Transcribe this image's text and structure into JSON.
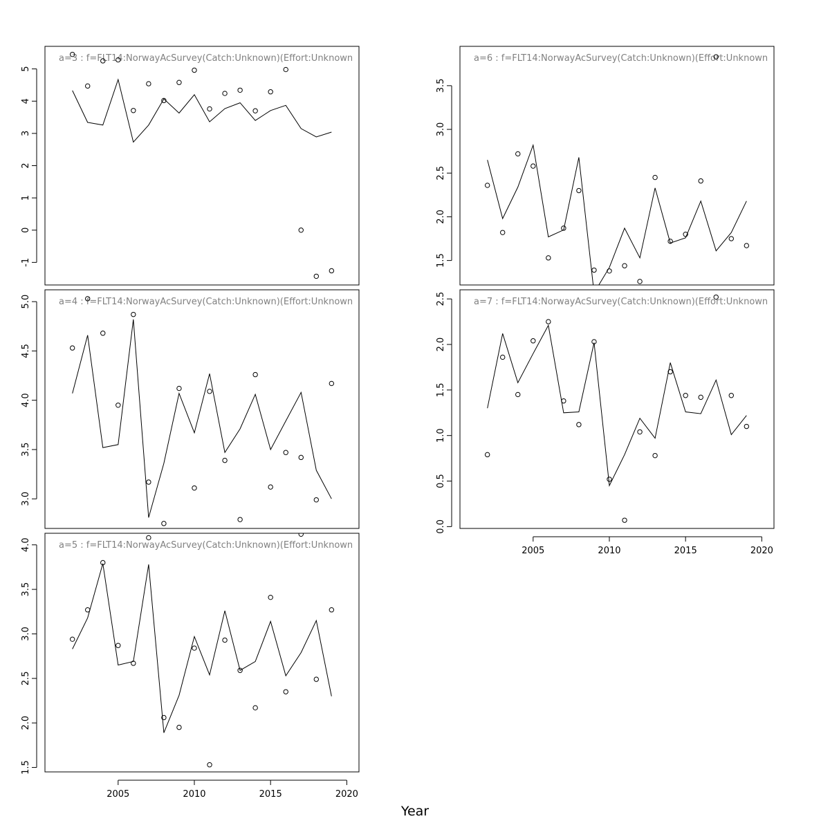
{
  "page": {
    "xlabel": "Year"
  },
  "chart_data": [
    {
      "type": "line",
      "title": "a=3  :  f=FLT14:NorwayAcSurvey(Catch:Unknown)(Effort:Unknown",
      "xlabel": "Year",
      "ylabel": "",
      "xlim": [
        2000.2,
        2020.8
      ],
      "ylim": [
        -1.7,
        5.7
      ],
      "yticks": [
        "-1",
        "0",
        "1",
        "2",
        "3",
        "4",
        "5"
      ],
      "xticks": [],
      "series": [
        {
          "mark": "line",
          "x": [
            2002,
            2003,
            2004,
            2005,
            2006,
            2007,
            2008,
            2009,
            2010,
            2011,
            2012,
            2013,
            2014,
            2015,
            2016,
            2017,
            2018,
            2019
          ],
          "values": [
            4.33,
            3.34,
            3.26,
            4.67,
            2.73,
            3.26,
            4.07,
            3.63,
            4.2,
            3.36,
            3.77,
            3.95,
            3.4,
            3.71,
            3.87,
            3.15,
            2.89,
            3.04
          ]
        },
        {
          "mark": "points",
          "x": [
            2002,
            2003,
            2004,
            2005,
            2006,
            2007,
            2008,
            2009,
            2010,
            2011,
            2012,
            2013,
            2014,
            2015,
            2016,
            2017,
            2018,
            2019
          ],
          "values": [
            5.45,
            4.47,
            5.25,
            5.28,
            3.71,
            4.54,
            4.02,
            4.58,
            4.96,
            3.76,
            4.24,
            4.34,
            3.7,
            4.29,
            4.98,
            0.0,
            -1.43,
            -1.26
          ]
        }
      ]
    },
    {
      "type": "line",
      "title": "a=4  :  f=FLT14:NorwayAcSurvey(Catch:Unknown)(Effort:Unknown",
      "xlabel": "Year",
      "ylabel": "",
      "xlim": [
        2000.2,
        2020.8
      ],
      "ylim": [
        2.7,
        5.12
      ],
      "yticks": [
        "3.0",
        "3.5",
        "4.0",
        "4.5",
        "5.0"
      ],
      "xticks": [],
      "series": [
        {
          "mark": "line",
          "x": [
            2002,
            2003,
            2004,
            2005,
            2006,
            2007,
            2008,
            2009,
            2010,
            2011,
            2012,
            2013,
            2014,
            2015,
            2016,
            2017,
            2018,
            2019
          ],
          "values": [
            4.07,
            4.66,
            3.52,
            3.55,
            4.82,
            2.81,
            3.36,
            4.07,
            3.67,
            4.27,
            3.47,
            3.71,
            4.06,
            3.5,
            3.79,
            4.08,
            3.29,
            3.0
          ]
        },
        {
          "mark": "points",
          "x": [
            2002,
            2003,
            2004,
            2005,
            2006,
            2007,
            2008,
            2009,
            2010,
            2011,
            2012,
            2013,
            2014,
            2015,
            2016,
            2017,
            2018,
            2019
          ],
          "values": [
            4.53,
            5.03,
            4.68,
            3.95,
            4.87,
            3.17,
            2.75,
            4.12,
            3.11,
            4.09,
            3.39,
            2.79,
            4.26,
            3.12,
            3.47,
            3.42,
            2.99,
            4.17
          ]
        }
      ]
    },
    {
      "type": "line",
      "title": "a=5  :  f=FLT14:NorwayAcSurvey(Catch:Unknown)(Effort:Unknown",
      "xlabel": "Year",
      "ylabel": "",
      "xlim": [
        2000.2,
        2020.8
      ],
      "ylim": [
        1.45,
        4.13
      ],
      "yticks": [
        "1.5",
        "2.0",
        "2.5",
        "3.0",
        "3.5",
        "4.0"
      ],
      "xticks": [
        "2005",
        "2010",
        "2015",
        "2020"
      ],
      "series": [
        {
          "mark": "line",
          "x": [
            2002,
            2003,
            2004,
            2005,
            2006,
            2007,
            2008,
            2009,
            2010,
            2011,
            2012,
            2013,
            2014,
            2015,
            2016,
            2017,
            2018,
            2019
          ],
          "values": [
            2.83,
            3.18,
            3.79,
            2.65,
            2.69,
            3.78,
            1.89,
            2.31,
            2.97,
            2.54,
            3.26,
            2.59,
            2.69,
            3.14,
            2.53,
            2.79,
            3.15,
            2.3
          ]
        },
        {
          "mark": "points",
          "x": [
            2002,
            2003,
            2004,
            2005,
            2006,
            2007,
            2008,
            2009,
            2010,
            2011,
            2012,
            2013,
            2014,
            2015,
            2016,
            2017,
            2018,
            2019
          ],
          "values": [
            2.94,
            3.27,
            3.8,
            2.87,
            2.67,
            4.08,
            2.06,
            1.95,
            2.84,
            1.53,
            2.93,
            2.59,
            2.17,
            3.41,
            2.35,
            4.12,
            2.49,
            3.27
          ]
        }
      ]
    },
    {
      "type": "line",
      "title": "a=6  :  f=FLT14:NorwayAcSurvey(Catch:Unknown)(Effort:Unknown",
      "xlabel": "Year",
      "ylabel": "",
      "xlim": [
        2000.2,
        2020.8
      ],
      "ylim": [
        1.22,
        3.95
      ],
      "yticks": [
        "1.5",
        "2.0",
        "2.5",
        "3.0",
        "3.5"
      ],
      "xticks": [],
      "series": [
        {
          "mark": "line",
          "x": [
            2002,
            2003,
            2004,
            2005,
            2006,
            2007,
            2008,
            2009,
            2010,
            2011,
            2012,
            2013,
            2014,
            2015,
            2016,
            2017,
            2018,
            2019
          ],
          "values": [
            2.65,
            1.98,
            2.34,
            2.82,
            1.77,
            1.85,
            2.68,
            1.13,
            1.42,
            1.87,
            1.53,
            2.33,
            1.7,
            1.76,
            2.18,
            1.61,
            1.82,
            2.18
          ]
        },
        {
          "mark": "points",
          "x": [
            2002,
            2003,
            2004,
            2005,
            2006,
            2007,
            2008,
            2009,
            2010,
            2011,
            2012,
            2013,
            2014,
            2015,
            2016,
            2017,
            2018,
            2019
          ],
          "values": [
            2.36,
            1.82,
            2.72,
            2.58,
            1.53,
            1.87,
            2.3,
            1.39,
            1.38,
            1.44,
            1.26,
            2.45,
            1.72,
            1.8,
            2.41,
            3.83,
            1.75,
            1.67
          ]
        }
      ]
    },
    {
      "type": "line",
      "title": "a=7  :  f=FLT14:NorwayAcSurvey(Catch:Unknown)(Effort:Unknown",
      "xlabel": "Year",
      "ylabel": "",
      "xlim": [
        2000.2,
        2020.8
      ],
      "ylim": [
        -0.02,
        2.6
      ],
      "yticks": [
        "0.0",
        "0.5",
        "1.0",
        "1.5",
        "2.0",
        "2.5"
      ],
      "xticks": [
        "2005",
        "2010",
        "2015",
        "2020"
      ],
      "series": [
        {
          "mark": "line",
          "x": [
            2002,
            2003,
            2004,
            2005,
            2006,
            2007,
            2008,
            2009,
            2010,
            2011,
            2012,
            2013,
            2014,
            2015,
            2016,
            2017,
            2018,
            2019
          ],
          "values": [
            1.3,
            2.12,
            1.58,
            1.9,
            2.21,
            1.25,
            1.26,
            2.02,
            0.45,
            0.79,
            1.19,
            0.97,
            1.8,
            1.26,
            1.24,
            1.61,
            1.01,
            1.22
          ]
        },
        {
          "mark": "points",
          "x": [
            2002,
            2003,
            2004,
            2005,
            2006,
            2007,
            2008,
            2009,
            2010,
            2011,
            2012,
            2013,
            2014,
            2015,
            2016,
            2017,
            2018,
            2019
          ],
          "values": [
            0.79,
            1.86,
            1.45,
            2.04,
            2.25,
            1.38,
            1.12,
            2.03,
            0.52,
            0.07,
            1.04,
            0.78,
            1.7,
            1.44,
            1.42,
            2.52,
            1.44,
            1.1
          ]
        }
      ]
    }
  ]
}
